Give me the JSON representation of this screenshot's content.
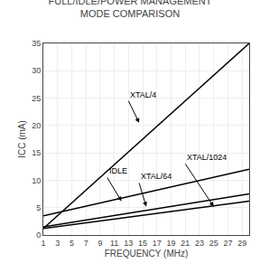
{
  "chart_data": {
    "type": "line",
    "title": "FULL/IDLE/POWER MANAGEMENT\nMODE COMPARISON",
    "x_label": "FREQUENCY (MHz)",
    "y_label": "ICC (mA)",
    "x": [
      1,
      30
    ],
    "series": [
      {
        "color": "#000000",
        "values": [
          1.2,
          35.0
        ]
      },
      {
        "color": "#000000",
        "values": [
          3.5,
          12.0
        ]
      },
      {
        "color": "#000000",
        "values": [
          1.5,
          7.5
        ]
      },
      {
        "color": "#000000",
        "values": [
          1.2,
          6.2
        ]
      }
    ],
    "xlim": [
      1,
      30
    ],
    "ylim": [
      0,
      35
    ],
    "xticks": [
      1,
      3,
      5,
      7,
      9,
      11,
      13,
      15,
      17,
      19,
      21,
      23,
      25,
      27,
      29
    ],
    "yticks": [
      0,
      5,
      10,
      15,
      20,
      25,
      30,
      35
    ],
    "grid": true,
    "annotations": [
      {
        "text": "XTAL/4",
        "xy": [
          14.5,
          20.5
        ],
        "xytext": [
          13.0,
          24.5
        ]
      },
      {
        "text": "IDLE",
        "xy": [
          12.0,
          6.2
        ],
        "xytext": [
          10.0,
          10.5
        ]
      },
      {
        "text": "XTAL/64",
        "xy": [
          15.5,
          5.2
        ],
        "xytext": [
          14.5,
          9.5
        ]
      },
      {
        "text": "XTAL/1024",
        "xy": [
          25.0,
          5.2
        ],
        "xytext": [
          21.0,
          13.0
        ]
      }
    ]
  }
}
